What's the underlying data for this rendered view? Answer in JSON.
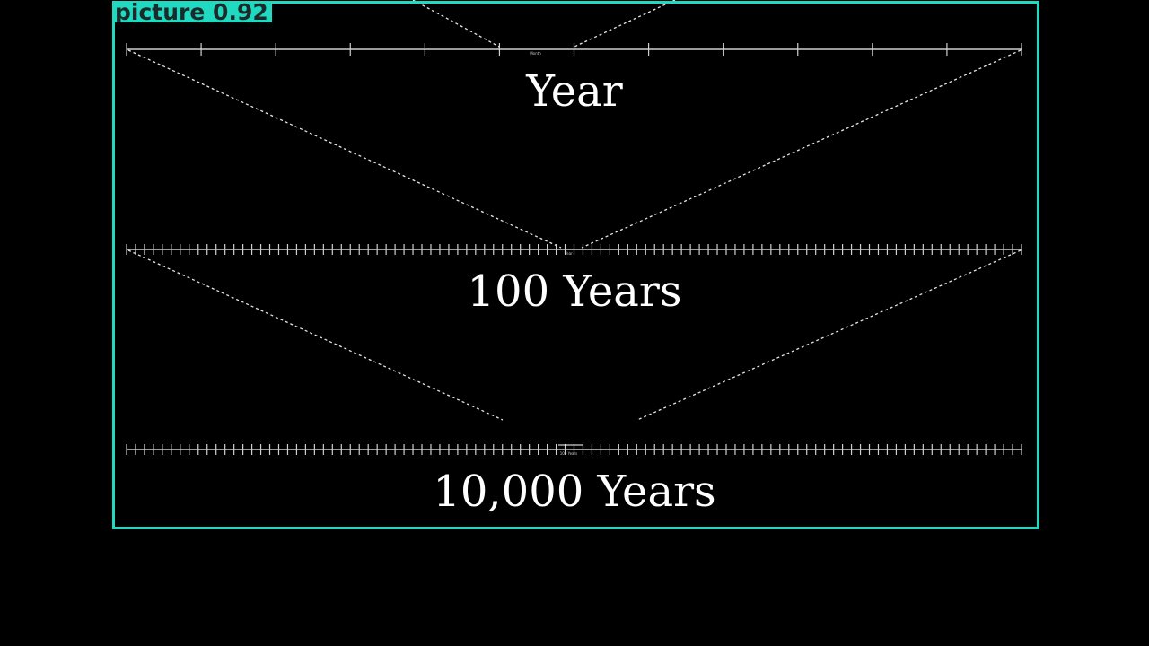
{
  "overlay": {
    "label": "picture",
    "score": "0.92",
    "color": "#1fd9c0"
  },
  "diagram": {
    "timelines": [
      {
        "title": "Year",
        "divisions": 12,
        "highlight_label": "Month"
      },
      {
        "title": "100 Years",
        "divisions": 100,
        "highlight_label": "Year"
      },
      {
        "title": "10,000 Years",
        "divisions": 100,
        "highlight_label": "100 Years"
      }
    ],
    "line_color": "#cfcfcf",
    "text_color": "#ffffff"
  }
}
